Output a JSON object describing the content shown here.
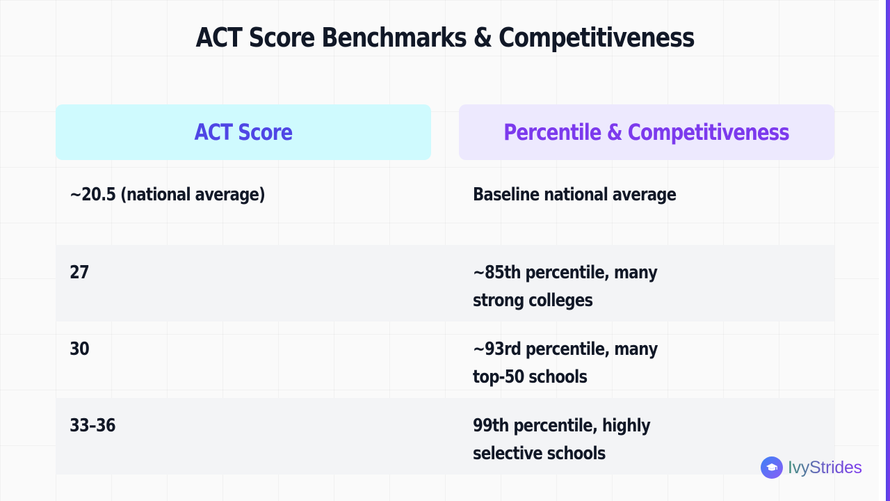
{
  "title": "ACT Score Benchmarks & Competitiveness",
  "table": {
    "headers": {
      "score": "ACT Score",
      "percentile": "Percentile & Competitiveness"
    },
    "rows": [
      {
        "score": "~20.5 (national average)",
        "percentile": "Baseline national average"
      },
      {
        "score": "27",
        "percentile": "~85th percentile, many\nstrong colleges"
      },
      {
        "score": "30",
        "percentile": "~93rd percentile, many\ntop-50 schools"
      },
      {
        "score": "33–36",
        "percentile": "99th percentile, highly\nselective schools"
      }
    ]
  },
  "brand": {
    "name": "IvyStrides",
    "icon": "graduation-cap-icon"
  },
  "colors": {
    "score_header_bg": "#cffafe",
    "score_header_text": "#4f46e5",
    "percentile_header_bg": "#ede9fe",
    "percentile_header_text": "#7c3aed",
    "accent": "#7c3aed"
  }
}
